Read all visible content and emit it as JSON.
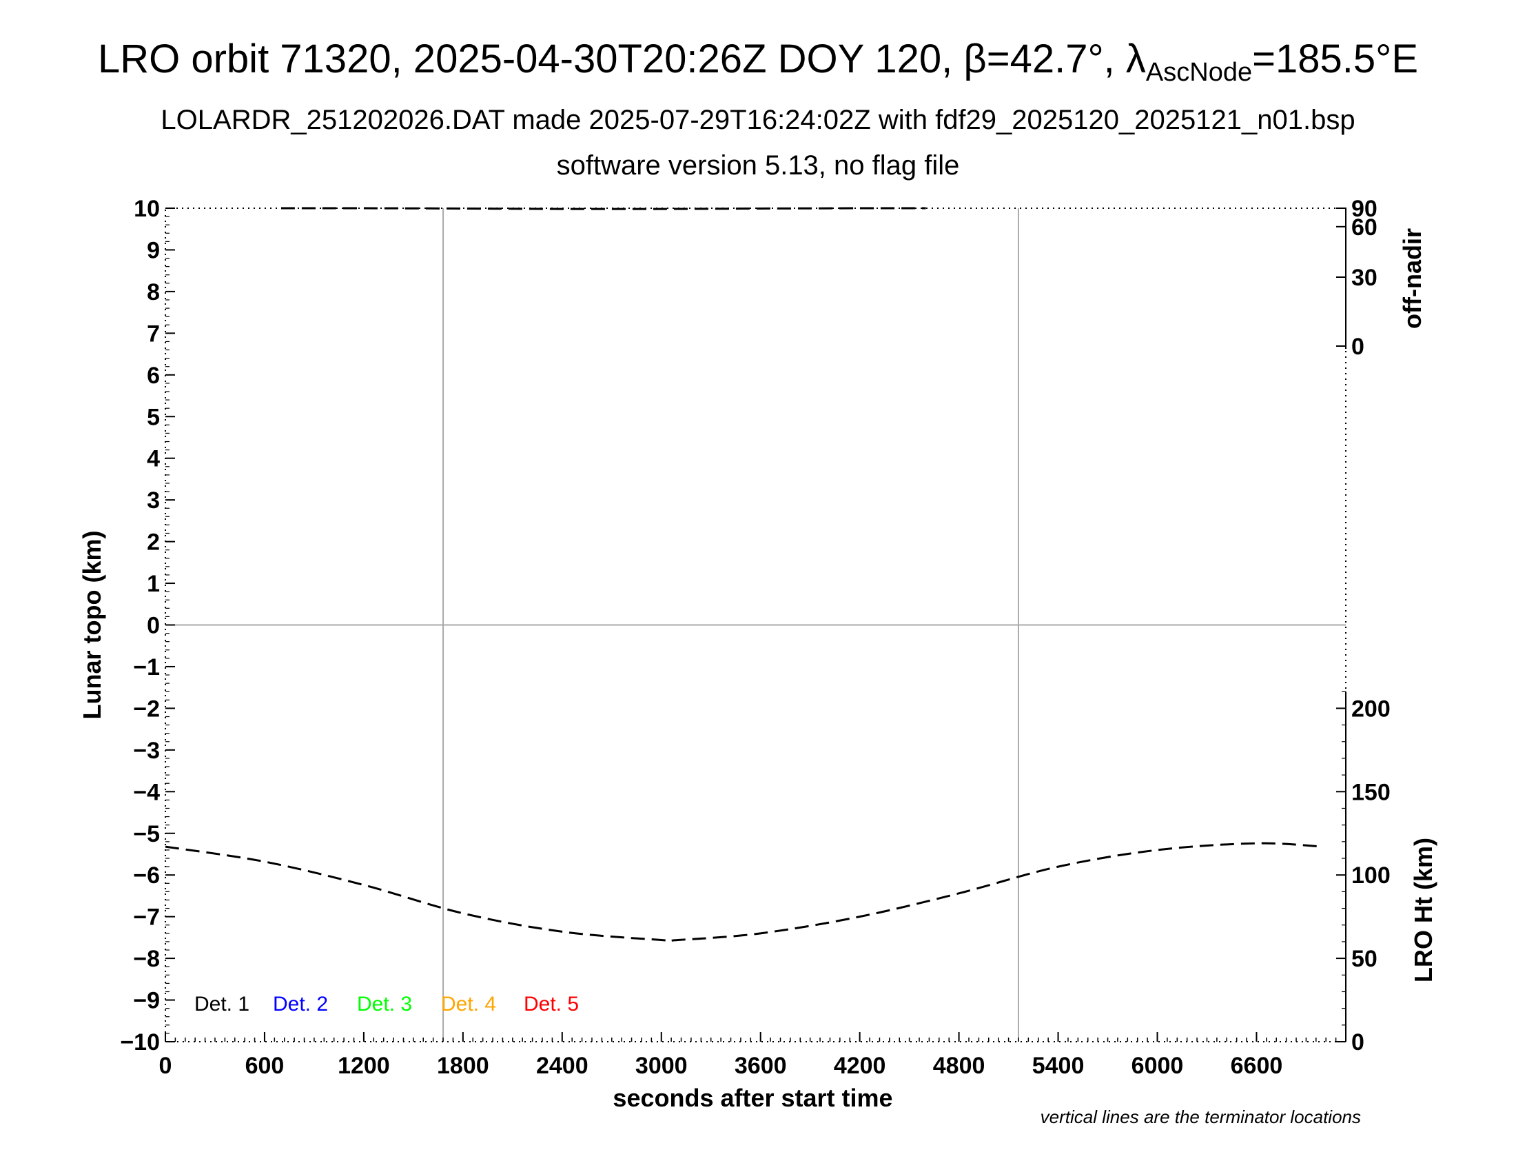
{
  "title": {
    "line1_main": "LRO orbit 71320, 2025-04-30T20:26Z DOY 120, β=42.7°, λ",
    "line1_sub": "AscNode",
    "line1_tail": "=185.5°E",
    "line2": "LOLARDR_251202026.DAT made 2025-07-29T16:24:02Z with fdf29_2025120_2025121_n01.bsp",
    "line3": "software version 5.13, no flag file"
  },
  "chart_data": {
    "type": "line",
    "xlabel": "seconds after start time",
    "ylabel_left": "Lunar topo (km)",
    "ylabel_right_top": "off-nadir",
    "ylabel_right_bottom": "LRO Ht (km)",
    "xlim": [
      0,
      7140
    ],
    "ylim_left": [
      -10,
      10
    ],
    "x_ticks": [
      0,
      600,
      1200,
      1800,
      2400,
      3000,
      3600,
      4200,
      4800,
      5400,
      6000,
      6600
    ],
    "y_ticks_left": [
      10,
      9,
      8,
      7,
      6,
      5,
      4,
      3,
      2,
      1,
      0,
      -1,
      -2,
      -3,
      -4,
      -5,
      -6,
      -7,
      -8,
      -9,
      -10
    ],
    "right_top_ticks": [
      90,
      60,
      30,
      0
    ],
    "right_bottom_ticks": [
      200,
      150,
      100,
      50,
      0
    ],
    "terminator_x": [
      1680,
      5160
    ],
    "note": "vertical lines are the terminator locations",
    "legend": [
      {
        "label": "Det. 1",
        "color": "#000000"
      },
      {
        "label": "Det. 2",
        "color": "#0000ff"
      },
      {
        "label": "Det. 3",
        "color": "#00ff00"
      },
      {
        "label": "Det. 4",
        "color": "#ffa500"
      },
      {
        "label": "Det. 5",
        "color": "#ff0000"
      }
    ],
    "series": [
      {
        "axis": "LRO Ht (km)",
        "style": "dashed",
        "x": [
          0,
          600,
          1200,
          1800,
          2400,
          3000,
          3100,
          3600,
          4200,
          4800,
          5400,
          6000,
          6600,
          7000
        ],
        "y": [
          117,
          108,
          94,
          77,
          66,
          61,
          61,
          65,
          75,
          89,
          105,
          115,
          119,
          117
        ]
      },
      {
        "axis": "off-nadir",
        "style": "dashed",
        "x": [
          700,
          1200,
          1800,
          2400,
          3000,
          3600,
          4200,
          4600
        ],
        "y": [
          90,
          89,
          86,
          84,
          84,
          86,
          89,
          90
        ]
      }
    ]
  }
}
